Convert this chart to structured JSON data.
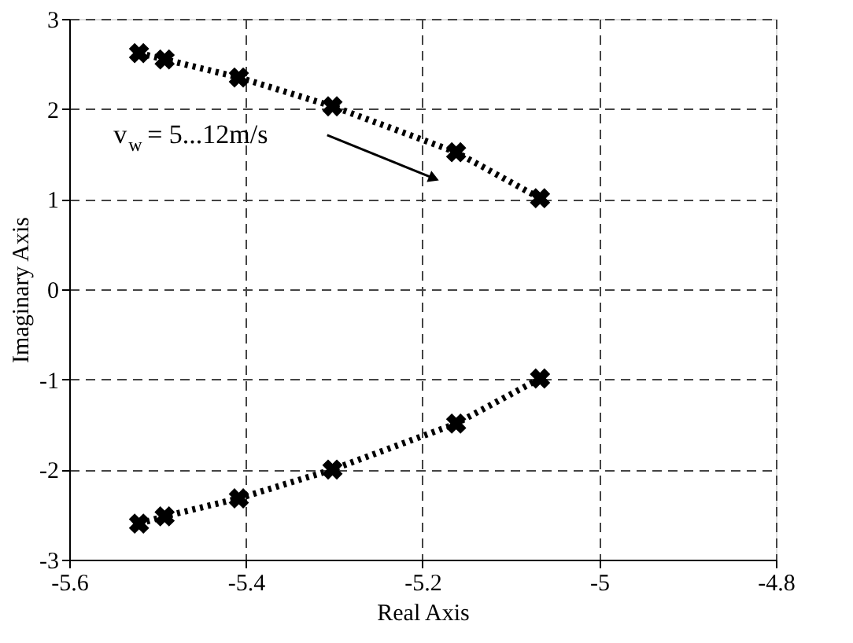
{
  "chart_data": {
    "type": "line",
    "xlabel": "Real Axis",
    "ylabel": "Imaginary Axis",
    "series": [
      {
        "color": "#000000",
        "x": [
          -5.521,
          -5.492,
          -5.408,
          -5.302,
          -5.162,
          -5.067
        ],
        "values": [
          2.62,
          2.55,
          2.35,
          2.03,
          1.52,
          1.01
        ]
      },
      {
        "color": "#000000",
        "x": [
          -5.521,
          -5.492,
          -5.408,
          -5.302,
          -5.162,
          -5.067
        ],
        "values": [
          -2.6,
          -2.52,
          -2.32,
          -2.0,
          -1.49,
          -0.99
        ]
      }
    ],
    "xlim": [
      -5.6,
      -4.8
    ],
    "xticks": [
      -5.6,
      -5.4,
      -5.2,
      -5,
      -4.8
    ],
    "ylim": [
      -3,
      3
    ],
    "yticks": [
      -3,
      -2,
      -1,
      0,
      1,
      2,
      3
    ],
    "grid": true,
    "marker": "cross",
    "line_style": "dotted",
    "annotations": [
      "v$_{w}$ = 5...12m/s"
    ]
  }
}
